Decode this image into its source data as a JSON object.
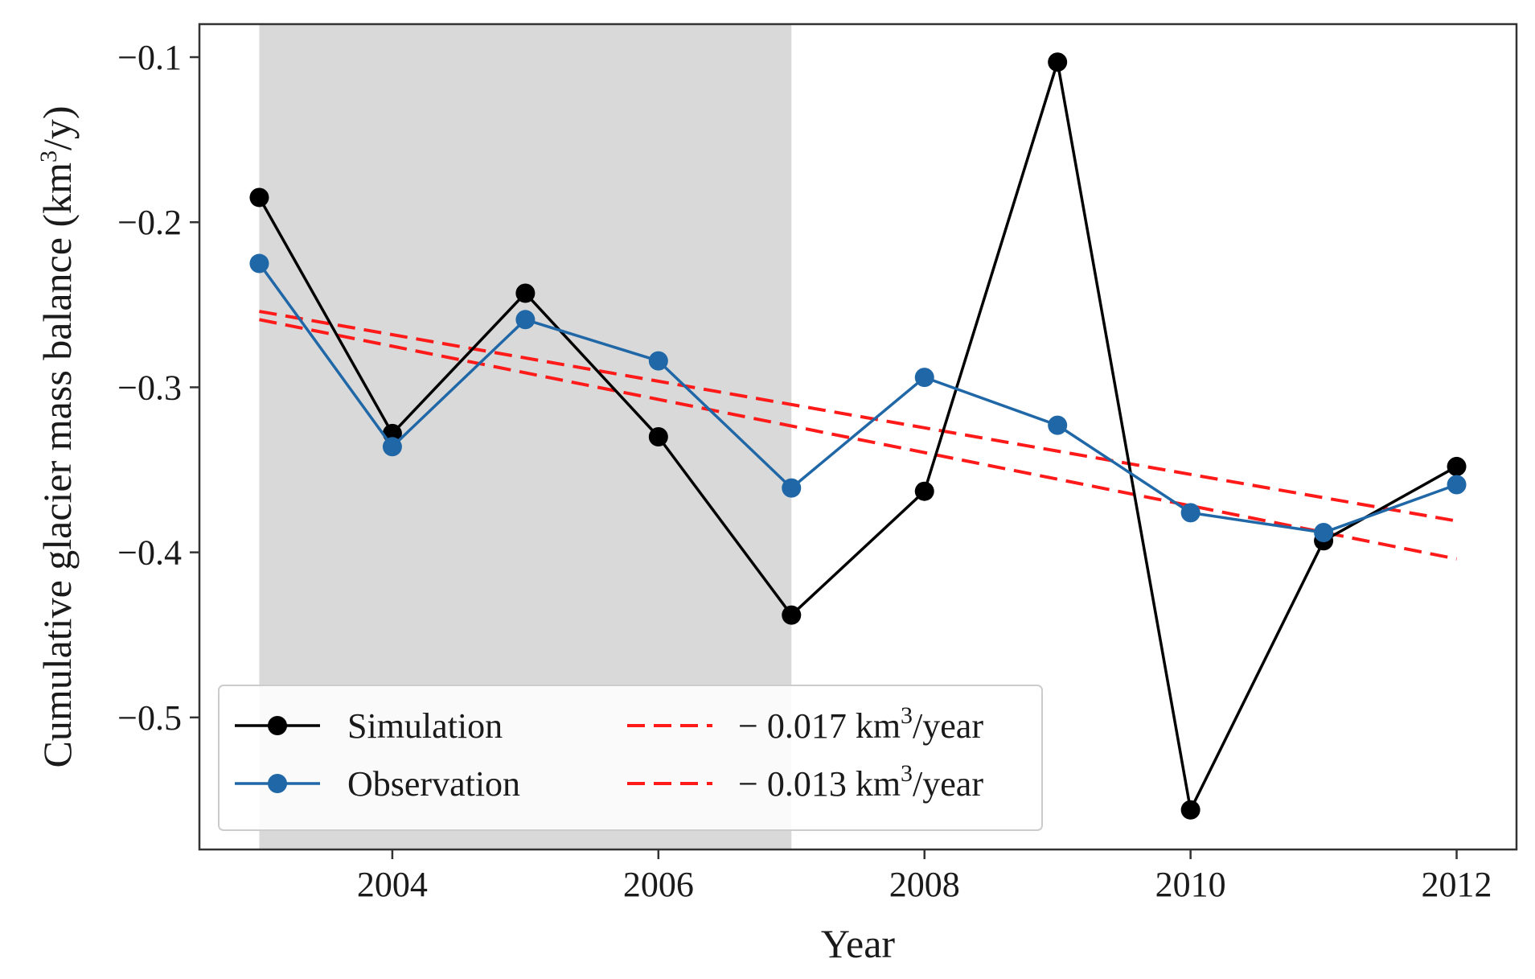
{
  "chart_data": {
    "type": "line",
    "xlabel": "Year",
    "ylabel_main": "Cumulative glacier mass balance (km",
    "ylabel_sup": "3",
    "ylabel_end": "/y)",
    "xlim": [
      2002.55,
      2012.45
    ],
    "ylim": [
      -0.58,
      -0.08
    ],
    "x_ticks": [
      2004,
      2006,
      2008,
      2010,
      2012
    ],
    "x_tick_labels": [
      "2004",
      "2006",
      "2008",
      "2010",
      "2012"
    ],
    "y_ticks": [
      -0.1,
      -0.2,
      -0.3,
      -0.4,
      -0.5
    ],
    "y_tick_labels": [
      "−0.1",
      "−0.2",
      "−0.3",
      "−0.4",
      "−0.5"
    ],
    "shaded_region": {
      "x_start": 2003,
      "x_end": 2007,
      "color": "#d9d9d9"
    },
    "x": [
      2003,
      2004,
      2005,
      2006,
      2007,
      2008,
      2009,
      2010,
      2011,
      2012
    ],
    "series": [
      {
        "name": "Simulation",
        "color": "#000000",
        "values": [
          -0.185,
          -0.328,
          -0.243,
          -0.33,
          -0.438,
          -0.363,
          -0.103,
          -0.556,
          -0.393,
          -0.348
        ]
      },
      {
        "name": "Observation",
        "color": "#1f67a6",
        "values": [
          -0.225,
          -0.336,
          -0.259,
          -0.284,
          -0.361,
          -0.294,
          -0.323,
          -0.376,
          -0.388,
          -0.359
        ]
      }
    ],
    "trend_lines": [
      {
        "label_prefix": "− 0.017 km",
        "label_sup": "3",
        "label_suffix": "/year",
        "color": "#ff1a1a",
        "x": [
          2003,
          2012
        ],
        "y": [
          -0.259,
          -0.404
        ]
      },
      {
        "label_prefix": "− 0.013 km",
        "label_sup": "3",
        "label_suffix": "/year",
        "color": "#ff1a1a",
        "x": [
          2003,
          2012
        ],
        "y": [
          -0.254,
          -0.381
        ]
      }
    ],
    "legend_position": "lower-left"
  }
}
